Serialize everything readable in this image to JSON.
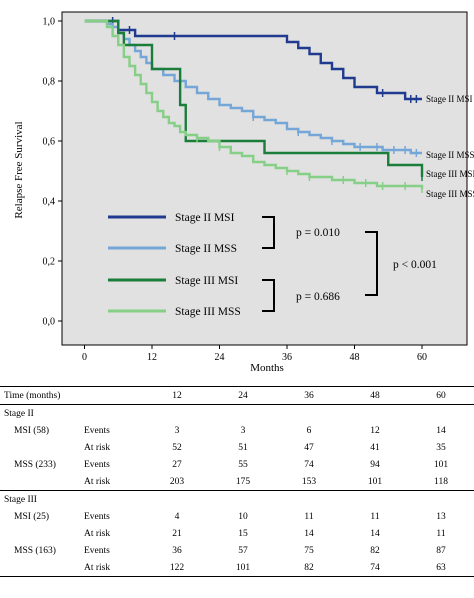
{
  "chart_data": {
    "type": "line",
    "ylabel": "Relapse Free Survival",
    "xlabel": "Months",
    "xlim": [
      -4,
      68
    ],
    "ylim": [
      -0.08,
      1.03
    ],
    "xticks": [
      "0",
      "12",
      "24",
      "36",
      "48",
      "60"
    ],
    "yticks": [
      "0,0",
      "0,2",
      "0,4",
      "0,6",
      "0,8",
      "1,0"
    ],
    "background": "#e1e1e1",
    "series": [
      {
        "name": "Stage II MSI",
        "color": "#1f3a8f",
        "end_label": "Stage II MSI",
        "points": [
          [
            0,
            1.0
          ],
          [
            6,
            1.0
          ],
          [
            6,
            0.97
          ],
          [
            9,
            0.97
          ],
          [
            9,
            0.95
          ],
          [
            36,
            0.95
          ],
          [
            36,
            0.93
          ],
          [
            38,
            0.93
          ],
          [
            38,
            0.91
          ],
          [
            40,
            0.91
          ],
          [
            40,
            0.89
          ],
          [
            42,
            0.89
          ],
          [
            42,
            0.86
          ],
          [
            44,
            0.86
          ],
          [
            44,
            0.84
          ],
          [
            46,
            0.84
          ],
          [
            46,
            0.81
          ],
          [
            48,
            0.81
          ],
          [
            48,
            0.78
          ],
          [
            52,
            0.78
          ],
          [
            52,
            0.76
          ],
          [
            57,
            0.76
          ],
          [
            57,
            0.74
          ],
          [
            60,
            0.74
          ]
        ],
        "censor": [
          [
            5,
            1.0
          ],
          [
            8,
            0.97
          ],
          [
            16,
            0.95
          ],
          [
            53,
            0.76
          ],
          [
            58,
            0.74
          ],
          [
            59,
            0.74
          ]
        ]
      },
      {
        "name": "Stage II MSS",
        "color": "#74a6d8",
        "end_label": "Stage II MSS",
        "points": [
          [
            0,
            1.0
          ],
          [
            3,
            1.0
          ],
          [
            4,
            0.99
          ],
          [
            5,
            0.98
          ],
          [
            6,
            0.96
          ],
          [
            7,
            0.94
          ],
          [
            8,
            0.92
          ],
          [
            9,
            0.9
          ],
          [
            10,
            0.88
          ],
          [
            11,
            0.86
          ],
          [
            12,
            0.84
          ],
          [
            14,
            0.82
          ],
          [
            16,
            0.8
          ],
          [
            18,
            0.78
          ],
          [
            20,
            0.76
          ],
          [
            22,
            0.74
          ],
          [
            24,
            0.72
          ],
          [
            26,
            0.71
          ],
          [
            28,
            0.7
          ],
          [
            30,
            0.68
          ],
          [
            32,
            0.67
          ],
          [
            34,
            0.66
          ],
          [
            36,
            0.64
          ],
          [
            38,
            0.63
          ],
          [
            40,
            0.62
          ],
          [
            42,
            0.61
          ],
          [
            44,
            0.6
          ],
          [
            46,
            0.59
          ],
          [
            48,
            0.58
          ],
          [
            51,
            0.58
          ],
          [
            53,
            0.57
          ],
          [
            56,
            0.57
          ],
          [
            58,
            0.56
          ],
          [
            60,
            0.56
          ]
        ],
        "censor": [
          [
            30,
            0.68
          ],
          [
            38,
            0.63
          ],
          [
            44,
            0.6
          ],
          [
            49,
            0.58
          ],
          [
            52,
            0.58
          ],
          [
            55,
            0.57
          ],
          [
            57,
            0.57
          ],
          [
            59,
            0.56
          ]
        ]
      },
      {
        "name": "Stage III MSI",
        "color": "#1a7d3a",
        "end_label": "Stage III MSI",
        "points": [
          [
            0,
            1.0
          ],
          [
            6,
            1.0
          ],
          [
            6,
            0.96
          ],
          [
            7,
            0.96
          ],
          [
            7,
            0.92
          ],
          [
            12,
            0.92
          ],
          [
            12,
            0.84
          ],
          [
            17,
            0.84
          ],
          [
            17,
            0.72
          ],
          [
            18,
            0.72
          ],
          [
            18,
            0.6
          ],
          [
            32,
            0.6
          ],
          [
            32,
            0.56
          ],
          [
            54,
            0.56
          ],
          [
            54,
            0.52
          ],
          [
            60,
            0.52
          ],
          [
            60,
            0.48
          ]
        ],
        "censor": [
          [
            60,
            0.48
          ]
        ]
      },
      {
        "name": "Stage III MSS",
        "color": "#86cf86",
        "end_label": "Stage III MSS",
        "points": [
          [
            0,
            1.0
          ],
          [
            3,
            1.0
          ],
          [
            4,
            0.98
          ],
          [
            5,
            0.95
          ],
          [
            6,
            0.92
          ],
          [
            7,
            0.88
          ],
          [
            8,
            0.85
          ],
          [
            9,
            0.82
          ],
          [
            10,
            0.79
          ],
          [
            11,
            0.76
          ],
          [
            12,
            0.73
          ],
          [
            13,
            0.7
          ],
          [
            14,
            0.68
          ],
          [
            15,
            0.66
          ],
          [
            16,
            0.65
          ],
          [
            17,
            0.63
          ],
          [
            18,
            0.62
          ],
          [
            20,
            0.61
          ],
          [
            22,
            0.6
          ],
          [
            24,
            0.58
          ],
          [
            26,
            0.56
          ],
          [
            28,
            0.55
          ],
          [
            30,
            0.53
          ],
          [
            32,
            0.52
          ],
          [
            34,
            0.51
          ],
          [
            36,
            0.5
          ],
          [
            38,
            0.49
          ],
          [
            40,
            0.48
          ],
          [
            42,
            0.48
          ],
          [
            44,
            0.47
          ],
          [
            46,
            0.47
          ],
          [
            48,
            0.46
          ],
          [
            50,
            0.46
          ],
          [
            52,
            0.45
          ],
          [
            55,
            0.45
          ],
          [
            60,
            0.44
          ]
        ],
        "censor": [
          [
            20,
            0.61
          ],
          [
            24,
            0.58
          ],
          [
            36,
            0.5
          ],
          [
            40,
            0.48
          ],
          [
            46,
            0.47
          ],
          [
            50,
            0.46
          ],
          [
            53,
            0.45
          ],
          [
            57,
            0.45
          ],
          [
            60,
            0.44
          ]
        ]
      }
    ],
    "legend": {
      "placement": "inside-bottom-left",
      "entries": [
        "Stage II MSI",
        "Stage II MSS",
        "Stage III MSI",
        "Stage III MSS"
      ]
    },
    "annotations": {
      "p_stage2": "p = 0.010",
      "p_stage3": "p = 0.686",
      "p_overall": "p < 0.001"
    }
  },
  "table": {
    "header": {
      "label": "Time (months)",
      "values": [
        "12",
        "24",
        "36",
        "48",
        "60"
      ]
    },
    "sections": [
      {
        "title": "Stage II",
        "groups": [
          {
            "name": "MSI (58)",
            "events": [
              "3",
              "3",
              "6",
              "12",
              "14"
            ],
            "at_risk": [
              "52",
              "51",
              "47",
              "41",
              "35"
            ]
          },
          {
            "name": "MSS (233)",
            "events": [
              "27",
              "55",
              "74",
              "94",
              "101"
            ],
            "at_risk": [
              "203",
              "175",
              "153",
              "101",
              "118"
            ]
          }
        ]
      },
      {
        "title": "Stage III",
        "groups": [
          {
            "name": "MSI (25)",
            "events": [
              "4",
              "10",
              "11",
              "11",
              "13"
            ],
            "at_risk": [
              "21",
              "15",
              "14",
              "14",
              "11"
            ]
          },
          {
            "name": "MSS (163)",
            "events": [
              "36",
              "57",
              "75",
              "82",
              "87"
            ],
            "at_risk": [
              "122",
              "101",
              "82",
              "74",
              "63"
            ]
          }
        ]
      }
    ],
    "events_label": "Events",
    "at_risk_label": "At risk"
  }
}
